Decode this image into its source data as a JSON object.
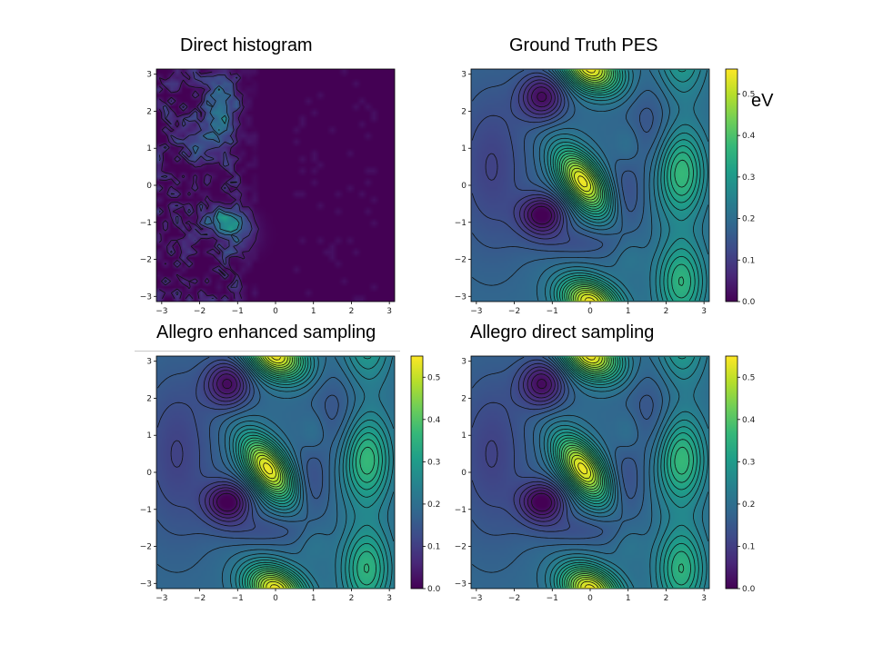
{
  "figure": {
    "unit_label": "eV"
  },
  "chart_data": [
    {
      "id": "hist",
      "type": "heatmap",
      "title": "Direct histogram",
      "xlabel": "",
      "ylabel": "",
      "xlim": [
        -3.14,
        3.14
      ],
      "ylim": [
        -3.14,
        3.14
      ],
      "xticks": [
        -3,
        -2,
        -1,
        0,
        1,
        2,
        3
      ],
      "yticks": [
        -3,
        -2,
        -1,
        0,
        1,
        2,
        3
      ],
      "contours": true,
      "colorbar": false
    },
    {
      "id": "gt",
      "type": "heatmap",
      "title": "Ground Truth PES",
      "xlim": [
        -3.14,
        3.14
      ],
      "ylim": [
        -3.14,
        3.14
      ],
      "xticks": [
        -3,
        -2,
        -1,
        0,
        1,
        2,
        3
      ],
      "yticks": [
        -3,
        -2,
        -1,
        0,
        1,
        2,
        3
      ],
      "contours": true,
      "colorbar": true,
      "colorbar_range": [
        0.0,
        0.56
      ],
      "colorbar_ticks": [
        "0.0",
        "0.1",
        "0.2",
        "0.3",
        "0.4",
        "0.5"
      ]
    },
    {
      "id": "enh",
      "type": "heatmap",
      "title": "Allegro enhanced sampling",
      "xlim": [
        -3.14,
        3.14
      ],
      "ylim": [
        -3.14,
        3.14
      ],
      "xticks": [
        -3,
        -2,
        -1,
        0,
        1,
        2,
        3
      ],
      "yticks": [
        -3,
        -2,
        -1,
        0,
        1,
        2,
        3
      ],
      "contours": true,
      "colorbar": true,
      "colorbar_range": [
        0.0,
        0.55
      ],
      "colorbar_ticks": [
        "0.0",
        "0.1",
        "0.2",
        "0.3",
        "0.4",
        "0.5"
      ]
    },
    {
      "id": "dir",
      "type": "heatmap",
      "title": "Allegro direct sampling",
      "xlim": [
        -3.14,
        3.14
      ],
      "ylim": [
        -3.14,
        3.14
      ],
      "xticks": [
        -3,
        -2,
        -1,
        0,
        1,
        2,
        3
      ],
      "yticks": [
        -3,
        -2,
        -1,
        0,
        1,
        2,
        3
      ],
      "contours": true,
      "colorbar": true,
      "colorbar_range": [
        0.0,
        0.55
      ],
      "colorbar_ticks": [
        "0.0",
        "0.1",
        "0.2",
        "0.3",
        "0.4",
        "0.5"
      ]
    }
  ]
}
